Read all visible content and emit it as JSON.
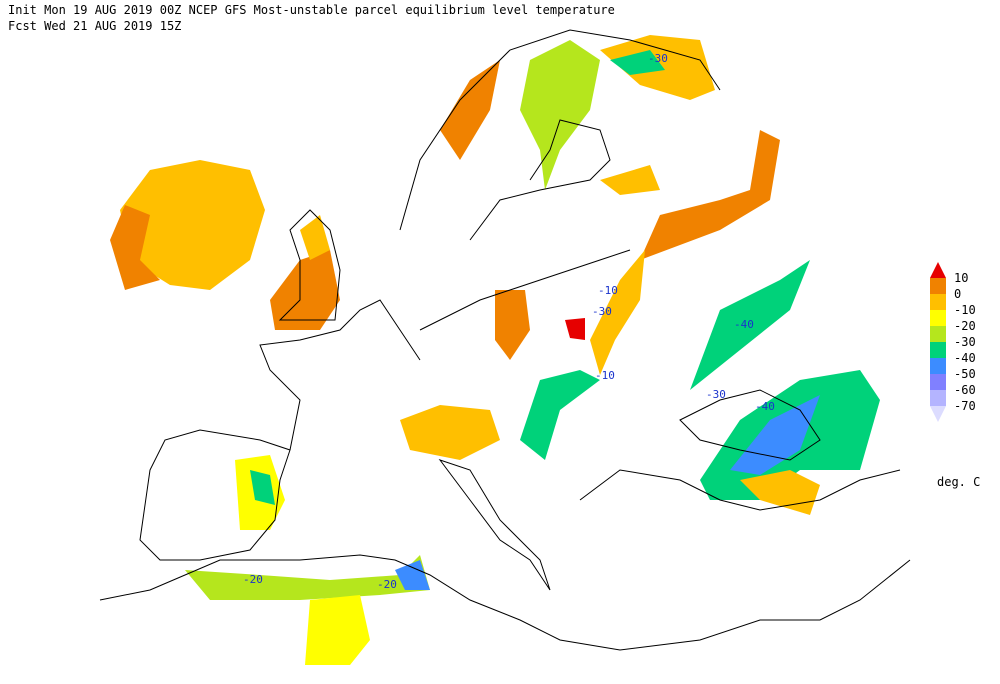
{
  "header": {
    "line1": "Init  Mon 19 AUG 2019 00Z  NCEP GFS Most-unstable parcel equilibrium level temperature",
    "line2": "Fcst Wed 21 AUG 2019 15Z"
  },
  "colorbar": {
    "levels": [
      10,
      0,
      -10,
      -20,
      -30,
      -40,
      -50,
      -60,
      -70
    ],
    "colors": [
      "#e60000",
      "#f08200",
      "#ffbf00",
      "#ffff00",
      "#b5e61d",
      "#00d27a",
      "#3c8cff",
      "#8080ff",
      "#b4b4ff",
      "#dcdcff"
    ],
    "unit": "deg. C"
  },
  "contour_labels": [
    "-30",
    "-10",
    "-30",
    "-40",
    "-10",
    "-30",
    "-40",
    "-20",
    "-20"
  ]
}
